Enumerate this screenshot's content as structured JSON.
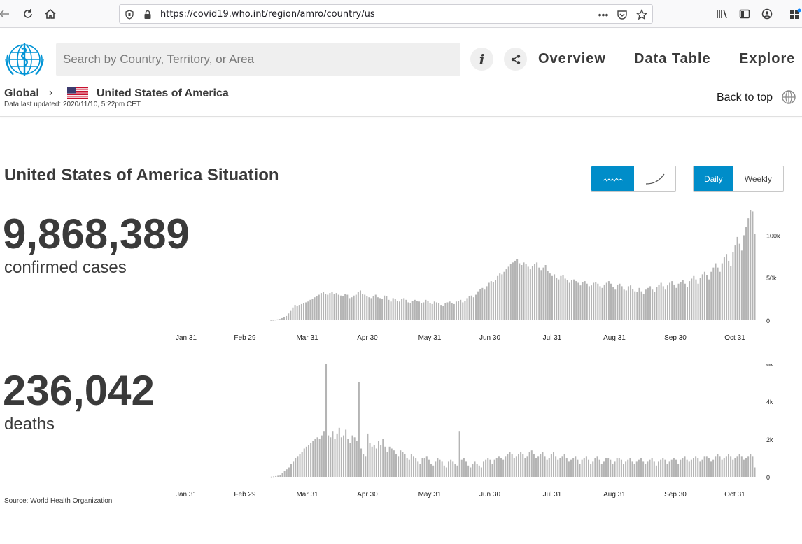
{
  "browser": {
    "url": "https://covid19.who.int/region/amro/country/us",
    "icons": [
      "back-arrow-icon",
      "reload-icon",
      "home-icon",
      "shield-icon",
      "lock-icon",
      "more-icon",
      "pocket-icon",
      "bookmark-star-icon",
      "library-icon",
      "sidebar-icon",
      "account-icon",
      "extensions-icon"
    ]
  },
  "header": {
    "search_placeholder": "Search by Country, Territory, or Area",
    "nav": [
      "Overview",
      "Data Table",
      "Explore"
    ],
    "info_icon": "info-icon",
    "share_icon": "share-icon"
  },
  "breadcrumb": {
    "global": "Global",
    "country": "United States of America",
    "updated": "Data last updated: 2020/11/10, 5:22pm CET",
    "back_to_top": "Back to top"
  },
  "situation": {
    "title": "United States of America Situation",
    "chart_toggles": [
      "daily-chart-icon",
      "cumulative-chart-icon"
    ],
    "period_toggles": [
      "Daily",
      "Weekly"
    ],
    "active_period": "Daily"
  },
  "stats": {
    "cases_value": "9,868,389",
    "cases_label": "confirmed cases",
    "deaths_value": "236,042",
    "deaths_label": "deaths"
  },
  "source": "Source: World Health Organization",
  "colors": {
    "accent": "#008dc9",
    "bar": "#b4b4b4"
  },
  "chart_data": [
    {
      "type": "bar",
      "name": "confirmed cases",
      "x_ticks": [
        "Jan 31",
        "Feb 29",
        "Mar 31",
        "Apr 30",
        "May 31",
        "Jun 30",
        "Jul 31",
        "Aug 31",
        "Sep 30",
        "Oct 31"
      ],
      "y_ticks": [
        "0",
        "50k",
        "100k"
      ],
      "ylim": [
        0,
        130000
      ],
      "values": [
        0,
        0,
        0,
        0,
        0,
        0,
        0,
        0,
        0,
        0,
        0,
        0,
        0,
        0,
        0,
        0,
        0,
        0,
        0,
        0,
        0,
        0,
        0,
        0,
        0,
        0,
        0,
        0,
        0,
        0,
        0,
        0,
        0,
        0,
        0,
        0,
        0,
        0,
        0,
        0,
        0,
        0,
        0,
        0,
        0,
        0,
        0,
        0,
        0,
        0,
        100,
        200,
        500,
        1000,
        1500,
        2500,
        3500,
        5000,
        8000,
        11000,
        15000,
        18000,
        17000,
        18000,
        19000,
        20000,
        21000,
        22000,
        24000,
        25000,
        27000,
        28000,
        30000,
        32000,
        33000,
        31000,
        30000,
        32000,
        33000,
        31000,
        32000,
        30000,
        29000,
        28000,
        31000,
        30000,
        26000,
        27000,
        29000,
        30000,
        33000,
        35000,
        31000,
        30000,
        28000,
        27000,
        26000,
        28000,
        30000,
        27000,
        26000,
        25000,
        29000,
        28000,
        24000,
        22000,
        26000,
        25000,
        23000,
        22000,
        25000,
        26000,
        24000,
        21000,
        20000,
        23000,
        24000,
        23000,
        22000,
        20000,
        21000,
        24000,
        23000,
        20000,
        19000,
        22000,
        21000,
        20000,
        18000,
        17000,
        20000,
        21000,
        22000,
        20000,
        19000,
        22000,
        23000,
        24000,
        21000,
        23000,
        26000,
        28000,
        29000,
        27000,
        30000,
        34000,
        37000,
        38000,
        36000,
        40000,
        44000,
        46000,
        45000,
        47000,
        52000,
        55000,
        54000,
        57000,
        60000,
        63000,
        66000,
        68000,
        70000,
        72000,
        67000,
        65000,
        68000,
        66000,
        63000,
        60000,
        64000,
        66000,
        68000,
        62000,
        59000,
        62000,
        65000,
        58000,
        55000,
        52000,
        54000,
        50000,
        48000,
        52000,
        53000,
        49000,
        47000,
        44000,
        47000,
        48000,
        46000,
        44000,
        41000,
        45000,
        46000,
        43000,
        40000,
        41000,
        44000,
        45000,
        43000,
        40000,
        38000,
        42000,
        44000,
        46000,
        43000,
        39000,
        36000,
        42000,
        43000,
        40000,
        36000,
        35000,
        40000,
        41000,
        37000,
        34000,
        33000,
        38000,
        34000,
        31000,
        36000,
        38000,
        40000,
        36000,
        33000,
        39000,
        42000,
        44000,
        40000,
        36000,
        41000,
        44000,
        46000,
        42000,
        38000,
        43000,
        45000,
        47000,
        43000,
        39000,
        46000,
        49000,
        52000,
        48000,
        43000,
        50000,
        54000,
        57000,
        53000,
        48000,
        57000,
        62000,
        67000,
        62000,
        57000,
        67000,
        74000,
        78000,
        70000,
        64000,
        80000,
        88000,
        98000,
        90000,
        82000,
        100000,
        110000,
        120000,
        130000,
        128000,
        102000
      ]
    },
    {
      "type": "bar",
      "name": "deaths",
      "x_ticks": [
        "Jan 31",
        "Feb 29",
        "Mar 31",
        "Apr 30",
        "May 31",
        "Jun 30",
        "Jul 31",
        "Aug 31",
        "Sep 30",
        "Oct 31"
      ],
      "y_ticks": [
        "0",
        "2k",
        "4k",
        "6k"
      ],
      "ylim": [
        0,
        6000
      ],
      "values": [
        0,
        0,
        0,
        0,
        0,
        0,
        0,
        0,
        0,
        0,
        0,
        0,
        0,
        0,
        0,
        0,
        0,
        0,
        0,
        0,
        0,
        0,
        0,
        0,
        0,
        0,
        0,
        0,
        0,
        0,
        0,
        0,
        0,
        0,
        0,
        0,
        0,
        0,
        0,
        0,
        0,
        0,
        0,
        0,
        0,
        0,
        0,
        0,
        0,
        0,
        10,
        20,
        40,
        60,
        100,
        200,
        300,
        400,
        500,
        700,
        800,
        1000,
        1100,
        1200,
        1300,
        1500,
        1600,
        1700,
        1800,
        1900,
        2000,
        2100,
        2000,
        2200,
        2400,
        6400,
        2200,
        2100,
        2400,
        2000,
        2300,
        2600,
        2100,
        2200,
        2500,
        2000,
        1800,
        2200,
        2100,
        1900,
        5000,
        1500,
        1200,
        1100,
        2300,
        1800,
        1600,
        1700,
        1500,
        1900,
        1700,
        2000,
        1600,
        1300,
        1600,
        1500,
        1400,
        1200,
        1100,
        1400,
        1300,
        1200,
        1000,
        900,
        1200,
        1100,
        1000,
        800,
        700,
        1000,
        1000,
        1100,
        900,
        700,
        600,
        800,
        1000,
        900,
        800,
        600,
        500,
        800,
        900,
        800,
        700,
        600,
        2400,
        900,
        1000,
        800,
        600,
        500,
        700,
        800,
        700,
        600,
        500,
        800,
        900,
        1000,
        900,
        700,
        900,
        1000,
        1100,
        1000,
        900,
        1100,
        1200,
        1300,
        1200,
        1000,
        1100,
        1200,
        1300,
        1200,
        1000,
        1100,
        1300,
        1400,
        1200,
        1000,
        1100,
        1200,
        1300,
        1100,
        900,
        1000,
        1200,
        1300,
        1100,
        900,
        1000,
        1100,
        1200,
        1000,
        800,
        900,
        1000,
        1100,
        900,
        700,
        900,
        1000,
        1100,
        900,
        700,
        800,
        1000,
        1100,
        900,
        700,
        800,
        1000,
        1000,
        900,
        700,
        800,
        1000,
        1000,
        900,
        700,
        800,
        900,
        1000,
        800,
        700,
        800,
        900,
        1000,
        800,
        700,
        800,
        900,
        1000,
        800,
        600,
        800,
        900,
        1000,
        900,
        700,
        800,
        900,
        1000,
        900,
        700,
        900,
        1000,
        1100,
        900,
        800,
        900,
        1000,
        1100,
        1000,
        800,
        900,
        1100,
        1100,
        1000,
        800,
        900,
        1100,
        1200,
        1100,
        900,
        1000,
        1100,
        1200,
        1100,
        900,
        1000,
        1100,
        1200,
        1100,
        900,
        1000,
        1100,
        1200,
        1100,
        500
      ]
    }
  ]
}
